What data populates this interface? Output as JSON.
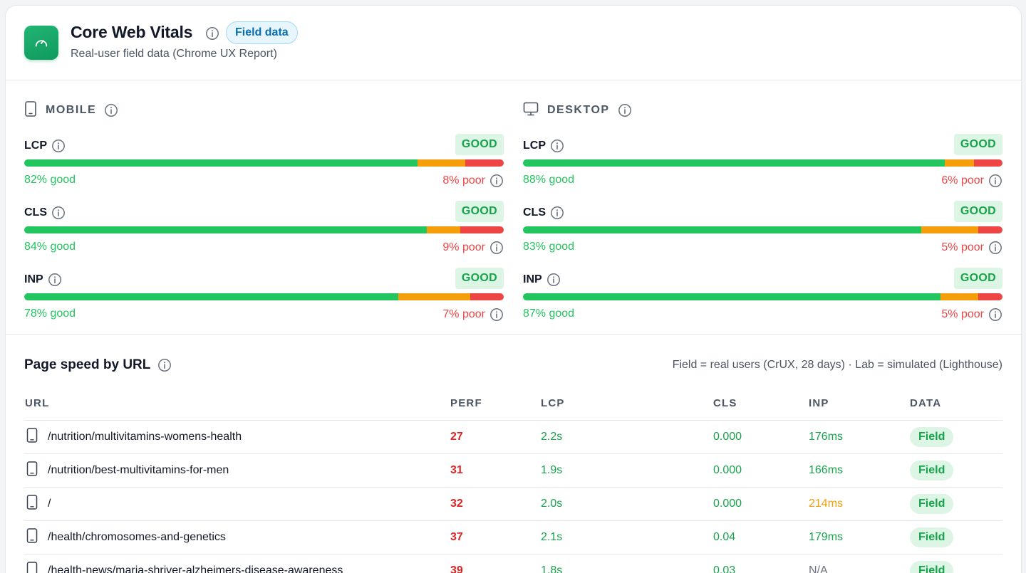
{
  "header": {
    "title": "Core Web Vitals",
    "badge": "Field data",
    "subtitle": "Real-user field data (Chrome UX Report)"
  },
  "mobile": {
    "label": "MOBILE",
    "metrics": [
      {
        "name": "LCP",
        "status": "GOOD",
        "good_pct": 82,
        "ni_pct": 10,
        "poor_pct": 8,
        "good_text": "82% good",
        "poor_text": "8% poor"
      },
      {
        "name": "CLS",
        "status": "GOOD",
        "good_pct": 84,
        "ni_pct": 7,
        "poor_pct": 9,
        "good_text": "84% good",
        "poor_text": "9% poor"
      },
      {
        "name": "INP",
        "status": "GOOD",
        "good_pct": 78,
        "ni_pct": 15,
        "poor_pct": 7,
        "good_text": "78% good",
        "poor_text": "7% poor"
      }
    ]
  },
  "desktop": {
    "label": "DESKTOP",
    "metrics": [
      {
        "name": "LCP",
        "status": "GOOD",
        "good_pct": 88,
        "ni_pct": 6,
        "poor_pct": 6,
        "good_text": "88% good",
        "poor_text": "6% poor"
      },
      {
        "name": "CLS",
        "status": "GOOD",
        "good_pct": 83,
        "ni_pct": 12,
        "poor_pct": 5,
        "good_text": "83% good",
        "poor_text": "5% poor"
      },
      {
        "name": "INP",
        "status": "GOOD",
        "good_pct": 87,
        "ni_pct": 8,
        "poor_pct": 5,
        "good_text": "87% good",
        "poor_text": "5% poor"
      }
    ]
  },
  "colors": {
    "good": "#22c55e",
    "needs_improvement": "#f59e0b",
    "poor": "#ef4444",
    "accent": "#0f9a5e"
  },
  "table": {
    "title": "Page speed by URL",
    "note": "Field = real users (CrUX, 28 days) · Lab = simulated (Lighthouse)",
    "columns": [
      "URL",
      "PERF",
      "LCP",
      "CLS",
      "INP",
      "DATA"
    ],
    "rows": [
      {
        "url": "/nutrition/multivitamins-womens-health",
        "perf": "27",
        "lcp": "2.2s",
        "cls": "0.000",
        "inp": "176ms",
        "inp_color": "#16a34a",
        "data": "Field"
      },
      {
        "url": "/nutrition/best-multivitamins-for-men",
        "perf": "31",
        "lcp": "1.9s",
        "cls": "0.000",
        "inp": "166ms",
        "inp_color": "#16a34a",
        "data": "Field"
      },
      {
        "url": "/",
        "perf": "32",
        "lcp": "2.0s",
        "cls": "0.000",
        "inp": "214ms",
        "inp_color": "#f59e0b",
        "data": "Field"
      },
      {
        "url": "/health/chromosomes-and-genetics",
        "perf": "37",
        "lcp": "2.1s",
        "cls": "0.04",
        "inp": "179ms",
        "inp_color": "#16a34a",
        "data": "Field"
      },
      {
        "url": "/health-news/maria-shriver-alzheimers-disease-awareness",
        "perf": "39",
        "lcp": "1.8s",
        "cls": "0.03",
        "inp": "N/A",
        "inp_color": "#6b7280",
        "data": "Field"
      }
    ]
  }
}
